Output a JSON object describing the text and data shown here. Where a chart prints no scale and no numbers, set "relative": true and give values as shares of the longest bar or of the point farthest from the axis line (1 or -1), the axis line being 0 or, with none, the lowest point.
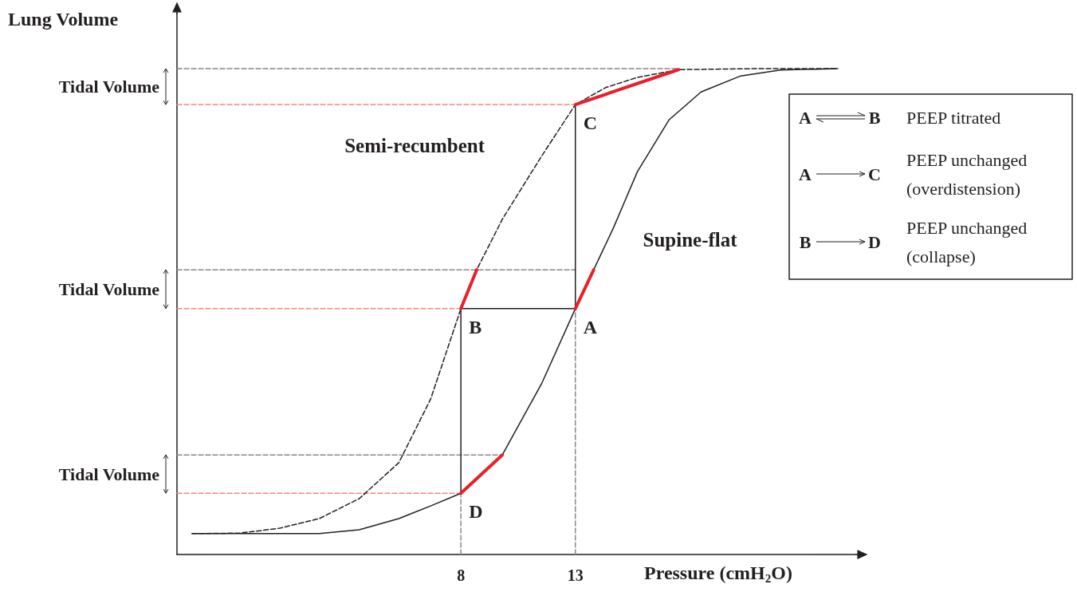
{
  "chart_data": {
    "type": "line",
    "relative": true,
    "ylabel": "Lung Volume",
    "xlabel": "Pressure (cmH$_{2}$O)",
    "xlim": [
      -4.4,
      25.3
    ],
    "xticks": [
      8,
      13
    ],
    "marker": "none",
    "line_style": "solid",
    "series": [
      {
        "name": "Supine-flat",
        "color": "#231f20",
        "x": [
          -3.74,
          1.82,
          3.56,
          5.29,
          6.68,
          8,
          9.81,
          11.54,
          13,
          13.8,
          14.67,
          15.71,
          17.1,
          18.49,
          20.22,
          21.96,
          24.46
        ],
        "values": [
          0.043,
          0.043,
          0.051,
          0.074,
          0.1,
          0.126,
          0.205,
          0.353,
          0.506,
          0.586,
          0.673,
          0.788,
          0.895,
          0.952,
          0.985,
          0.997,
          1
        ]
      },
      {
        "name": "Semi-recumbent",
        "color": "#231f20",
        "line_style": "dashed",
        "x": [
          -3.74,
          -1.65,
          0.08,
          1.82,
          3.56,
          5.29,
          6.68,
          8,
          8.69,
          9.81,
          11.54,
          13,
          14.32,
          15.71,
          17.51,
          20.92,
          24.46
        ],
        "values": [
          0.043,
          0.044,
          0.054,
          0.074,
          0.115,
          0.189,
          0.32,
          0.506,
          0.586,
          0.69,
          0.821,
          0.926,
          0.961,
          0.982,
          0.998,
          1,
          1
        ]
      },
      {
        "color": "#888888",
        "line_style": "dashed",
        "x": [
          -4.4,
          17.51
        ],
        "values": [
          1,
          1
        ]
      },
      {
        "color": "#f08a7a",
        "line_style": "dashed",
        "x": [
          -4.4,
          13
        ],
        "values": [
          0.926,
          0.926
        ]
      },
      {
        "color": "#888888",
        "line_style": "dashed",
        "x": [
          -4.4,
          13
        ],
        "values": [
          0.586,
          0.586
        ]
      },
      {
        "color": "#f08a7a",
        "line_style": "dashed",
        "x": [
          -4.4,
          8
        ],
        "values": [
          0.506,
          0.506
        ]
      },
      {
        "color": "#888888",
        "line_style": "dashed",
        "x": [
          -4.4,
          9.81
        ],
        "values": [
          0.205,
          0.205
        ]
      },
      {
        "color": "#f08a7a",
        "line_style": "dashed",
        "x": [
          -4.4,
          8
        ],
        "values": [
          0.126,
          0.126
        ]
      },
      {
        "color": "#888888",
        "line_style": "dashed",
        "x": [
          8,
          8
        ],
        "values": [
          0,
          0.126
        ]
      },
      {
        "color": "#888888",
        "line_style": "dashed",
        "x": [
          13,
          13
        ],
        "values": [
          0,
          0.506
        ]
      },
      {
        "color": "#231f20",
        "x": [
          8,
          13
        ],
        "values": [
          0.506,
          0.506
        ]
      },
      {
        "color": "#231f20",
        "x": [
          13,
          13
        ],
        "values": [
          0.506,
          0.926
        ]
      },
      {
        "color": "#231f20",
        "x": [
          8,
          8
        ],
        "values": [
          0.506,
          0.126
        ]
      },
      {
        "color": "#e8202a",
        "x": [
          13,
          13.8
        ],
        "values": [
          0.506,
          0.586
        ]
      },
      {
        "color": "#e8202a",
        "x": [
          8,
          8.69
        ],
        "values": [
          0.506,
          0.586
        ]
      },
      {
        "color": "#e8202a",
        "x": [
          13,
          17.51
        ],
        "values": [
          0.926,
          0.998
        ]
      },
      {
        "color": "#e8202a",
        "x": [
          8,
          9.81
        ],
        "values": [
          0.126,
          0.205
        ]
      }
    ],
    "annotations": [
      "A",
      "B",
      "C",
      "D",
      "Tidal Volume",
      "Tidal Volume",
      "Tidal Volume",
      "PEEP titrated",
      "PEEP unchanged (overdistension)",
      "PEEP unchanged (collapse)",
      "A",
      "B",
      "A",
      "C",
      "B",
      "D"
    ]
  }
}
